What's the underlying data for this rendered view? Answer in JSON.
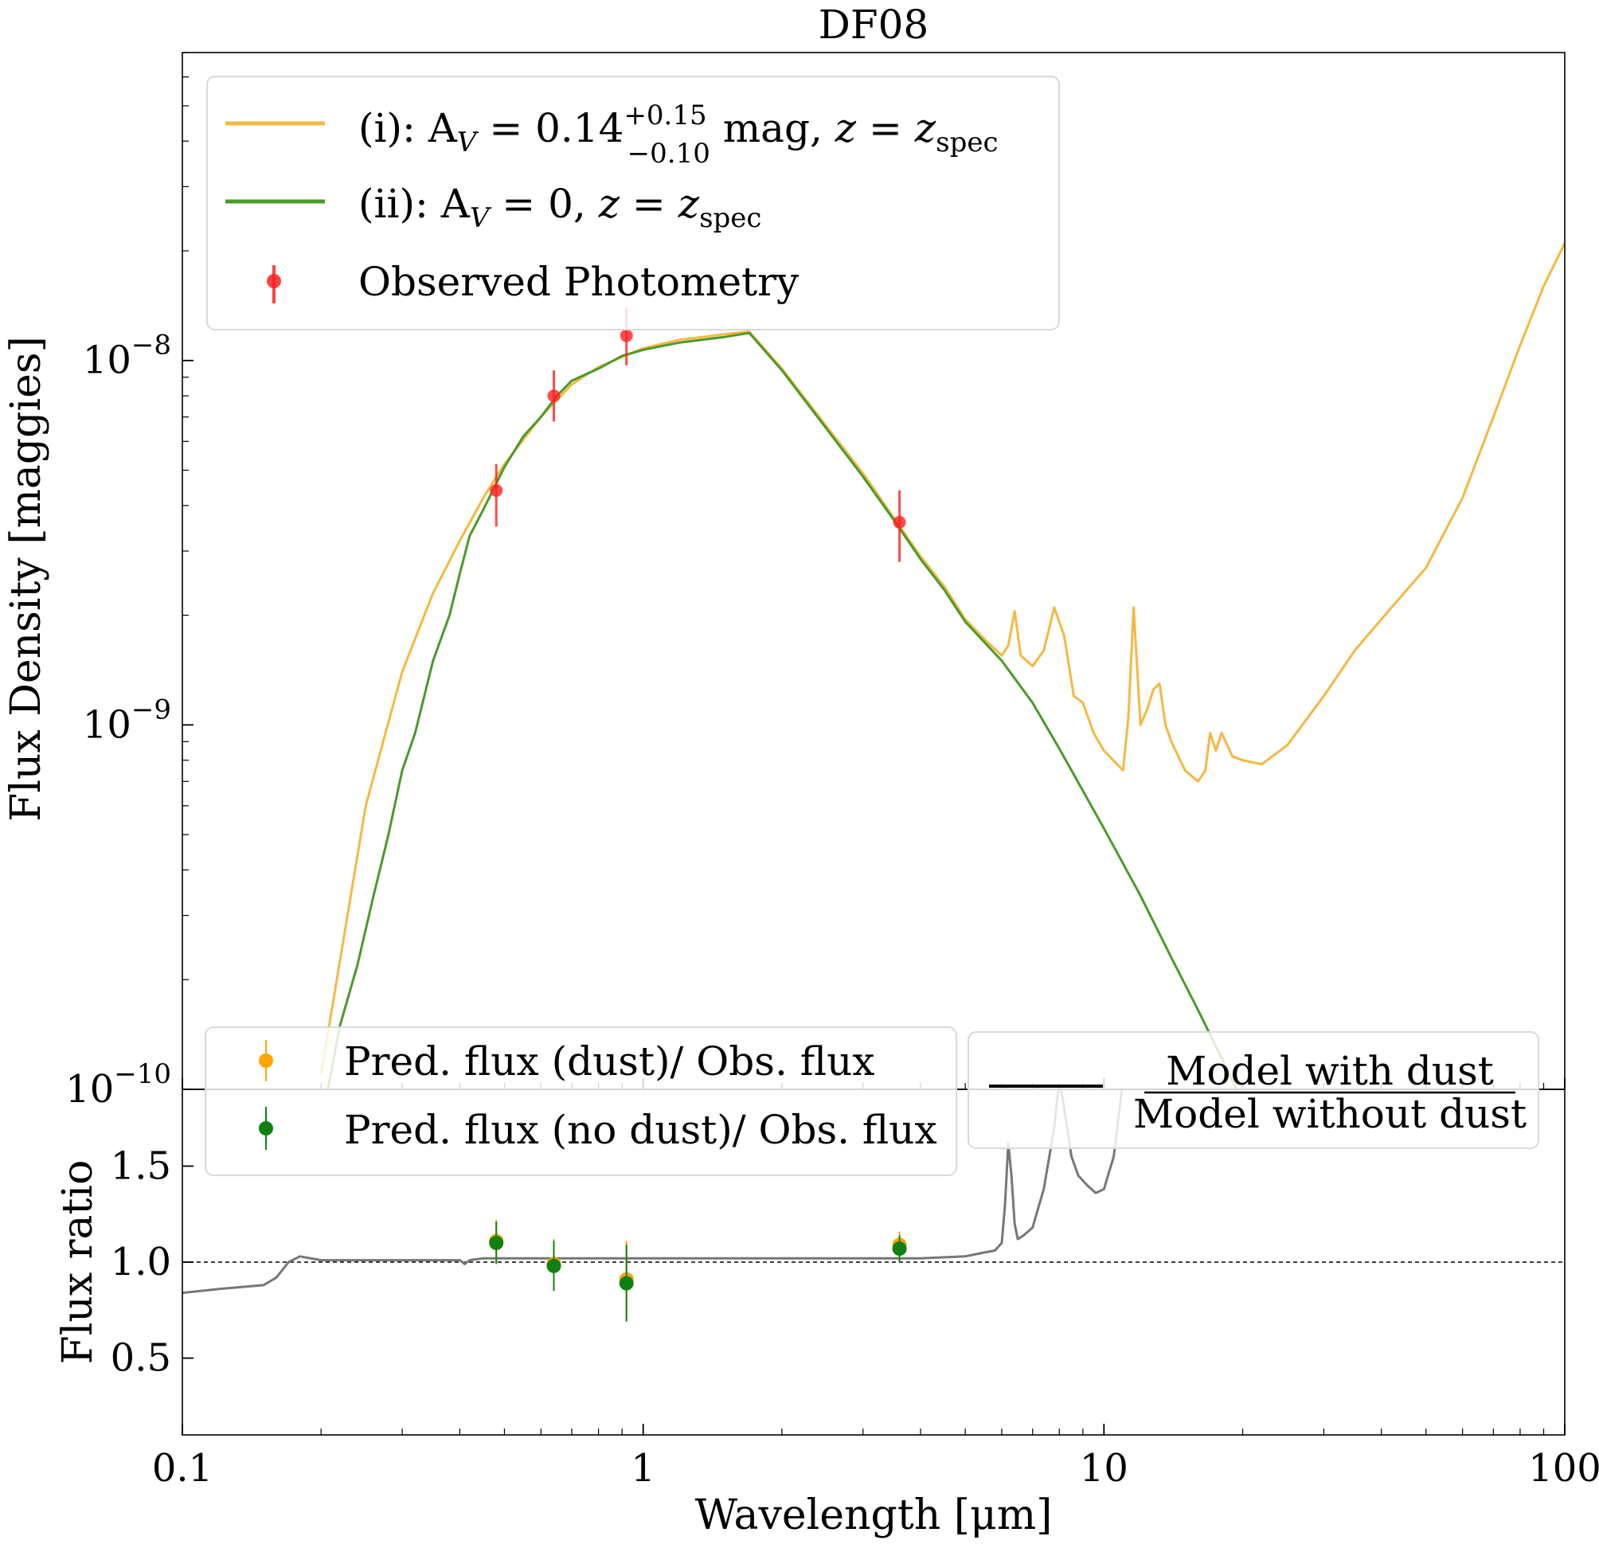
{
  "chart_data": [
    {
      "type": "line",
      "title": "DF08",
      "xlabel": "Wavelength [μm]",
      "ylabel": "Flux Density [maggies]",
      "xscale": "log",
      "yscale": "log",
      "xlim": [
        0.1,
        100
      ],
      "ylim": [
        1e-10,
        7e-08
      ],
      "yticks": [
        {
          "value": 1e-08,
          "base": "10",
          "exp": "−8"
        },
        {
          "value": 1e-09,
          "base": "10",
          "exp": "−9"
        },
        {
          "value": 1e-10,
          "base": "10",
          "exp": "−10"
        }
      ],
      "grid": false,
      "legend_position": "top-left",
      "series": [
        {
          "name": "(i): A_V = 0.14 (+0.15, −0.10) mag, z = z_spec",
          "legend": {
            "prefix": "(i): A",
            "v_sub": "V",
            "eq": " = 0.14",
            "sup": "+0.15",
            "sub": "−0.10",
            "mid": " mag, ",
            "z": "z",
            "eq2": " = ",
            "z2": "z",
            "zsub": "spec"
          },
          "color": "#f5b841",
          "x": [
            0.2,
            0.25,
            0.3,
            0.35,
            0.4,
            0.45,
            0.5,
            0.6,
            0.7,
            0.8,
            1.0,
            1.2,
            1.5,
            1.7,
            2.0,
            2.5,
            3.0,
            3.5,
            4.0,
            4.5,
            5.0,
            5.5,
            6.0,
            6.2,
            6.4,
            6.6,
            7.0,
            7.4,
            7.8,
            8.2,
            8.6,
            9.0,
            9.5,
            10.0,
            11.0,
            11.3,
            11.6,
            12.0,
            12.4,
            12.8,
            13.2,
            13.6,
            14.0,
            15.0,
            16.0,
            16.6,
            17.0,
            17.5,
            18.0,
            19.0,
            20.0,
            22.0,
            25.0,
            30.0,
            35.0,
            40.0,
            50.0,
            60.0,
            70.0,
            80.0,
            90.0,
            100.0
          ],
          "y": [
            1.1e-10,
            6e-10,
            1.4e-09,
            2.3e-09,
            3.2e-09,
            4.2e-09,
            5.2e-09,
            7e-09,
            8.6e-09,
            9.6e-09,
            1.08e-08,
            1.14e-08,
            1.18e-08,
            1.2e-08,
            9.5e-09,
            6.6e-09,
            4.9e-09,
            3.7e-09,
            2.9e-09,
            2.4e-09,
            1.95e-09,
            1.72e-09,
            1.55e-09,
            1.65e-09,
            2.05e-09,
            1.55e-09,
            1.45e-09,
            1.6e-09,
            2.1e-09,
            1.75e-09,
            1.2e-09,
            1.15e-09,
            9.5e-10,
            8.5e-10,
            7.5e-10,
            1.05e-09,
            2.1e-09,
            1e-09,
            1.1e-09,
            1.25e-09,
            1.3e-09,
            1e-09,
            9e-10,
            7.5e-10,
            7e-10,
            7.5e-10,
            9.5e-10,
            8.5e-10,
            9.5e-10,
            8.2e-10,
            8e-10,
            7.8e-10,
            8.8e-10,
            1.2e-09,
            1.6e-09,
            1.95e-09,
            2.7e-09,
            4.2e-09,
            7e-09,
            1.1e-08,
            1.6e-08,
            2.1e-08
          ]
        },
        {
          "name": "(ii): A_V = 0, z = z_spec",
          "legend": {
            "prefix": "(ii): A",
            "v_sub": "V",
            "eq": " = 0, ",
            "z": "z",
            "eq2": " = ",
            "z2": "z",
            "zsub": "spec"
          },
          "color": "#4a9a2a",
          "x": [
            0.2,
            0.22,
            0.24,
            0.26,
            0.28,
            0.3,
            0.32,
            0.35,
            0.38,
            0.4,
            0.42,
            0.45,
            0.48,
            0.5,
            0.55,
            0.6,
            0.65,
            0.7,
            0.8,
            0.9,
            1.0,
            1.2,
            1.5,
            1.7,
            2.0,
            2.5,
            3.0,
            3.5,
            4.0,
            4.5,
            5.0,
            6.0,
            7.0,
            8.0,
            10.0,
            12.0,
            14.0,
            16.0,
            18.0,
            20.0
          ],
          "y": [
            8e-11,
            1.5e-10,
            2.2e-10,
            3.4e-10,
            5e-10,
            7.5e-10,
            9.5e-10,
            1.5e-09,
            2e-09,
            2.6e-09,
            3.3e-09,
            3.9e-09,
            4.6e-09,
            5.1e-09,
            6.2e-09,
            7e-09,
            8e-09,
            8.8e-09,
            9.5e-09,
            1.03e-08,
            1.07e-08,
            1.12e-08,
            1.16e-08,
            1.19e-08,
            9.4e-09,
            6.5e-09,
            4.8e-09,
            3.65e-09,
            2.85e-09,
            2.35e-09,
            1.92e-09,
            1.5e-09,
            1.15e-09,
            8.6e-10,
            5.2e-10,
            3.4e-10,
            2.3e-10,
            1.65e-10,
            1.22e-10,
            9.2e-11
          ]
        }
      ],
      "photometry": {
        "name": "Observed Photometry",
        "color": "#ff2020",
        "points": [
          {
            "x": 0.48,
            "y": 4.4e-09,
            "yerr_low": 3.5e-09,
            "yerr_high": 5.2e-09
          },
          {
            "x": 0.64,
            "y": 8e-09,
            "yerr_low": 6.8e-09,
            "yerr_high": 9.4e-09
          },
          {
            "x": 0.92,
            "y": 1.17e-08,
            "yerr_low": 9.7e-09,
            "yerr_high": 1.4e-08
          },
          {
            "x": 3.6,
            "y": 3.6e-09,
            "yerr_low": 2.8e-09,
            "yerr_high": 4.4e-09
          }
        ]
      }
    },
    {
      "type": "line",
      "xlabel": "Wavelength [μm]",
      "ylabel": "Flux ratio",
      "xscale": "log",
      "xlim": [
        0.1,
        100
      ],
      "ylim": [
        0.1,
        1.9
      ],
      "xticks": [
        {
          "value": 0.1,
          "label": "0.1"
        },
        {
          "value": 1,
          "label": "1"
        },
        {
          "value": 10,
          "label": "10"
        },
        {
          "value": 100,
          "label": "100"
        }
      ],
      "yticks": [
        {
          "value": 0.5,
          "label": "0.5"
        },
        {
          "value": 1.0,
          "label": "1.0"
        },
        {
          "value": 1.5,
          "label": "1.5"
        }
      ],
      "reference_line": 1.0,
      "grid": false,
      "legend_position": "top-left",
      "ratio_line": {
        "legend_numerator": "Model with dust",
        "legend_denominator": "Model without dust",
        "color": "#777777",
        "x": [
          0.1,
          0.12,
          0.15,
          0.16,
          0.17,
          0.18,
          0.2,
          0.25,
          0.3,
          0.4,
          0.41,
          0.42,
          0.45,
          0.5,
          0.7,
          1.0,
          2.0,
          3.0,
          4.0,
          5.0,
          5.5,
          5.8,
          6.0,
          6.1,
          6.2,
          6.3,
          6.4,
          6.5,
          6.7,
          7.0,
          7.4,
          7.8,
          8.0,
          8.2,
          8.5,
          8.8,
          9.2,
          9.6,
          10.0,
          10.5,
          11.0
        ],
        "y": [
          0.84,
          0.86,
          0.88,
          0.92,
          1.0,
          1.03,
          1.01,
          1.01,
          1.01,
          1.01,
          0.99,
          1.01,
          1.02,
          1.02,
          1.02,
          1.02,
          1.02,
          1.02,
          1.02,
          1.03,
          1.05,
          1.06,
          1.1,
          1.3,
          1.62,
          1.45,
          1.2,
          1.12,
          1.14,
          1.18,
          1.38,
          1.7,
          1.95,
          1.8,
          1.55,
          1.45,
          1.4,
          1.36,
          1.38,
          1.55,
          1.95
        ]
      },
      "series": [
        {
          "name": "Pred. flux (dust)/ Obs. flux",
          "color": "#ffa500",
          "points": [
            {
              "x": 0.48,
              "y": 1.11,
              "yerr": 0.11
            },
            {
              "x": 0.64,
              "y": 0.99,
              "yerr": 0.13
            },
            {
              "x": 0.92,
              "y": 0.91,
              "yerr": 0.2
            },
            {
              "x": 3.6,
              "y": 1.09,
              "yerr": 0.07
            }
          ]
        },
        {
          "name": "Pred. flux (no dust)/ Obs. flux",
          "color": "#108010",
          "points": [
            {
              "x": 0.48,
              "y": 1.1,
              "yerr": 0.11
            },
            {
              "x": 0.64,
              "y": 0.98,
              "yerr": 0.13
            },
            {
              "x": 0.92,
              "y": 0.89,
              "yerr": 0.2
            },
            {
              "x": 3.6,
              "y": 1.07,
              "yerr": 0.07
            }
          ]
        }
      ]
    }
  ]
}
